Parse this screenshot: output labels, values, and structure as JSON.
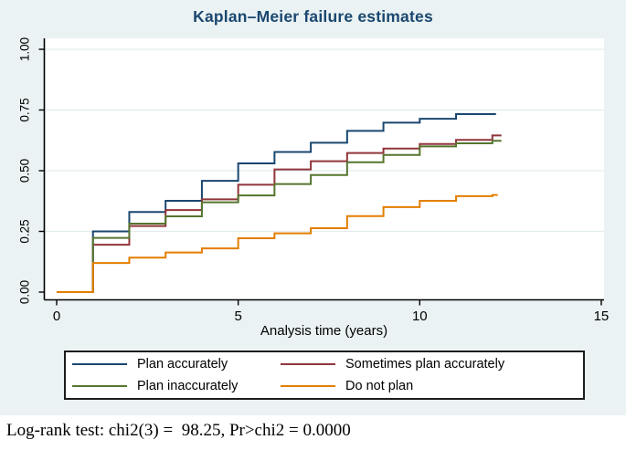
{
  "colors": {
    "figure_background": "#EAF2F3",
    "plot_background": "#FFFFFF",
    "gridline": "#E2ECEE",
    "axis": "#000000",
    "title": "#1A476F"
  },
  "footer": {
    "text": "Log-rank test: chi2(3) =  98.25, Pr>chi2 = 0.0000"
  },
  "chart_data": {
    "type": "line",
    "subtype": "step",
    "title": "Kaplan–Meier failure estimates",
    "xlabel": "Analysis time (years)",
    "ylabel": "",
    "xlim": [
      0,
      15.1
    ],
    "ylim": [
      0,
      1.08
    ],
    "grid": "horizontal",
    "legend_position": "bottom",
    "xticks": [
      {
        "v": 0,
        "label": "0"
      },
      {
        "v": 5,
        "label": "5"
      },
      {
        "v": 10,
        "label": "10"
      },
      {
        "v": 15,
        "label": "15"
      }
    ],
    "yticks": [
      {
        "v": 0.0,
        "label": "0.00"
      },
      {
        "v": 0.25,
        "label": "0.25"
      },
      {
        "v": 0.5,
        "label": "0.50"
      },
      {
        "v": 0.75,
        "label": "0.75"
      },
      {
        "v": 1.0,
        "label": "1.00"
      }
    ],
    "series": [
      {
        "name": "Plan accurately",
        "color": "#1A476F",
        "t_end": 12.1,
        "steps": [
          [
            0,
            0
          ],
          [
            1,
            0.25
          ],
          [
            2,
            0.33
          ],
          [
            3,
            0.376
          ],
          [
            4,
            0.458
          ],
          [
            5,
            0.53
          ],
          [
            6,
            0.577
          ],
          [
            7,
            0.615
          ],
          [
            8,
            0.664
          ],
          [
            9,
            0.698
          ],
          [
            10,
            0.714
          ],
          [
            11,
            0.733
          ],
          [
            12,
            0.733
          ]
        ]
      },
      {
        "name": "Sometimes plan accurately",
        "color": "#90353B",
        "t_end": 12.25,
        "steps": [
          [
            0,
            0
          ],
          [
            1,
            0.195
          ],
          [
            2,
            0.272
          ],
          [
            3,
            0.338
          ],
          [
            4,
            0.382
          ],
          [
            5,
            0.442
          ],
          [
            6,
            0.505
          ],
          [
            7,
            0.539
          ],
          [
            8,
            0.573
          ],
          [
            9,
            0.591
          ],
          [
            10,
            0.61
          ],
          [
            11,
            0.627
          ],
          [
            12,
            0.645
          ]
        ]
      },
      {
        "name": "Plan inaccurately",
        "color": "#55752F",
        "t_end": 12.25,
        "steps": [
          [
            0,
            0
          ],
          [
            1,
            0.223
          ],
          [
            2,
            0.282
          ],
          [
            3,
            0.312
          ],
          [
            4,
            0.37
          ],
          [
            5,
            0.398
          ],
          [
            6,
            0.445
          ],
          [
            7,
            0.482
          ],
          [
            8,
            0.535
          ],
          [
            9,
            0.565
          ],
          [
            10,
            0.6
          ],
          [
            11,
            0.613
          ],
          [
            12,
            0.623
          ]
        ]
      },
      {
        "name": "Do not plan",
        "color": "#E37E00",
        "t_end": 12.15,
        "steps": [
          [
            0,
            0
          ],
          [
            1,
            0.12
          ],
          [
            2,
            0.142
          ],
          [
            3,
            0.163
          ],
          [
            4,
            0.18
          ],
          [
            5,
            0.222
          ],
          [
            6,
            0.242
          ],
          [
            7,
            0.263
          ],
          [
            8,
            0.313
          ],
          [
            9,
            0.35
          ],
          [
            10,
            0.376
          ],
          [
            11,
            0.395
          ],
          [
            12,
            0.4
          ]
        ]
      }
    ]
  }
}
